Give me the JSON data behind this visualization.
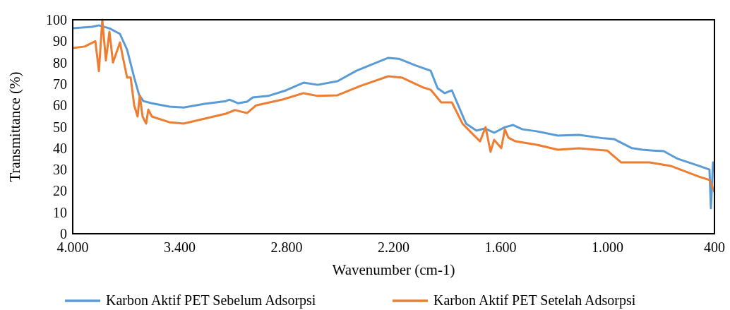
{
  "chart_data": {
    "type": "line",
    "xlabel": "Wavenumber (cm-1)",
    "ylabel": "Transmittance (%)",
    "xlim": [
      4000,
      400
    ],
    "ylim": [
      0,
      100
    ],
    "xticks": [
      {
        "value": 4000,
        "label": "4.000"
      },
      {
        "value": 3400,
        "label": "3.400"
      },
      {
        "value": 2800,
        "label": "2.800"
      },
      {
        "value": 2200,
        "label": "2.200"
      },
      {
        "value": 1600,
        "label": "1.600"
      },
      {
        "value": 1000,
        "label": "1.000"
      },
      400
    ],
    "yticks": [
      0,
      10,
      20,
      30,
      40,
      50,
      60,
      70,
      80,
      90,
      100
    ],
    "grid": false,
    "legend": "bottom",
    "marker": "none",
    "line_style": "solid",
    "series": [
      {
        "name": "Karbon Aktif PET Sebelum Adsorpsi",
        "color": "#5b9bd5",
        "x": [
          4000,
          3893,
          3853,
          3794,
          3735,
          3695,
          3655,
          3628,
          3604,
          3556,
          3457,
          3378,
          3259,
          3141,
          3121,
          3073,
          3022,
          2990,
          2903,
          2804,
          2705,
          2626,
          2515,
          2408,
          2230,
          2171,
          2072,
          1992,
          1953,
          1913,
          1873,
          1794,
          1735,
          1689,
          1636,
          1576,
          1529,
          1477,
          1398,
          1279,
          1160,
          1022,
          962,
          863,
          804,
          745,
          685,
          606,
          487,
          428,
          420,
          408,
          400
        ],
        "values": [
          96,
          96.7,
          97.4,
          96,
          93.4,
          86,
          73,
          65,
          62,
          61,
          59.4,
          59,
          60.7,
          62,
          62.7,
          61,
          61.7,
          63.7,
          64.4,
          67,
          70.6,
          69.6,
          71.3,
          76.2,
          82.2,
          81.8,
          78.5,
          76.2,
          68,
          65.7,
          67,
          51.5,
          48.2,
          49.2,
          47.2,
          49.8,
          50.8,
          48.8,
          47.9,
          45.9,
          46.2,
          44.6,
          44.2,
          40,
          39.3,
          38.9,
          38.6,
          35,
          31.7,
          30,
          11.9,
          33.3,
          31.7
        ]
      },
      {
        "name": "Karbon Aktif PET Setelah Adsorpsi",
        "color": "#ed7d31",
        "x": [
          4000,
          3933,
          3873,
          3853,
          3834,
          3814,
          3794,
          3774,
          3735,
          3715,
          3695,
          3675,
          3655,
          3636,
          3624,
          3608,
          3588,
          3576,
          3556,
          3457,
          3378,
          3259,
          3141,
          3090,
          3022,
          2971,
          2824,
          2705,
          2626,
          2515,
          2388,
          2230,
          2151,
          2032,
          1992,
          1933,
          1873,
          1814,
          1755,
          1715,
          1684,
          1656,
          1636,
          1596,
          1576,
          1556,
          1517,
          1398,
          1279,
          1160,
          1002,
          923,
          844,
          764,
          646,
          487,
          428,
          416,
          400
        ],
        "values": [
          86.8,
          87.5,
          90,
          76,
          100,
          81,
          94.4,
          80,
          89.4,
          81,
          73,
          73,
          60,
          54.8,
          64.7,
          54.8,
          51.5,
          58,
          54.8,
          52.1,
          51.5,
          53.8,
          56.1,
          57.8,
          56.4,
          60,
          62.7,
          65.7,
          64.4,
          64.7,
          69,
          73.6,
          72.9,
          68.3,
          67.3,
          61.4,
          61.4,
          51.5,
          46.5,
          43.2,
          49.8,
          38.3,
          43.9,
          40,
          48.8,
          44.9,
          43.2,
          41.6,
          39.3,
          39.9,
          38.9,
          33.3,
          33.3,
          33.3,
          31.7,
          26.7,
          25.1,
          22.8,
          19.5
        ]
      }
    ]
  }
}
